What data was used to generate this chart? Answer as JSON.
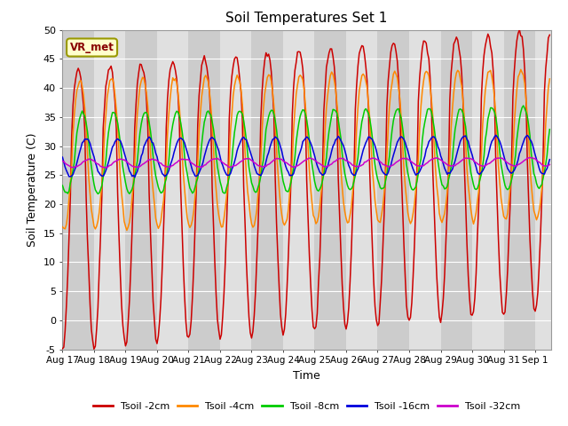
{
  "title": "Soil Temperatures Set 1",
  "xlabel": "Time",
  "ylabel": "Soil Temperature (C)",
  "ylim": [
    -5,
    50
  ],
  "yticks": [
    -5,
    0,
    5,
    10,
    15,
    20,
    25,
    30,
    35,
    40,
    45,
    50
  ],
  "xtick_labels": [
    "Aug 17",
    "Aug 18",
    "Aug 19",
    "Aug 20",
    "Aug 21",
    "Aug 22",
    "Aug 23",
    "Aug 24",
    "Aug 25",
    "Aug 26",
    "Aug 27",
    "Aug 28",
    "Aug 29",
    "Aug 30",
    "Aug 31",
    "Sep 1"
  ],
  "series": [
    {
      "label": "Tsoil -2cm",
      "color": "#cc0000"
    },
    {
      "label": "Tsoil -4cm",
      "color": "#ff8800"
    },
    {
      "label": "Tsoil -8cm",
      "color": "#00cc00"
    },
    {
      "label": "Tsoil -16cm",
      "color": "#0000dd"
    },
    {
      "label": "Tsoil -32cm",
      "color": "#cc00cc"
    }
  ],
  "bg_color": "#ffffff",
  "plot_bg_color": "#d8d8d8",
  "band_light": "#e0e0e0",
  "band_dark": "#cccccc",
  "grid_color": "#ffffff",
  "vr_met_label": "VR_met",
  "vr_met_bg": "#ffffcc",
  "vr_met_border": "#999900",
  "vr_met_text_color": "#880000"
}
